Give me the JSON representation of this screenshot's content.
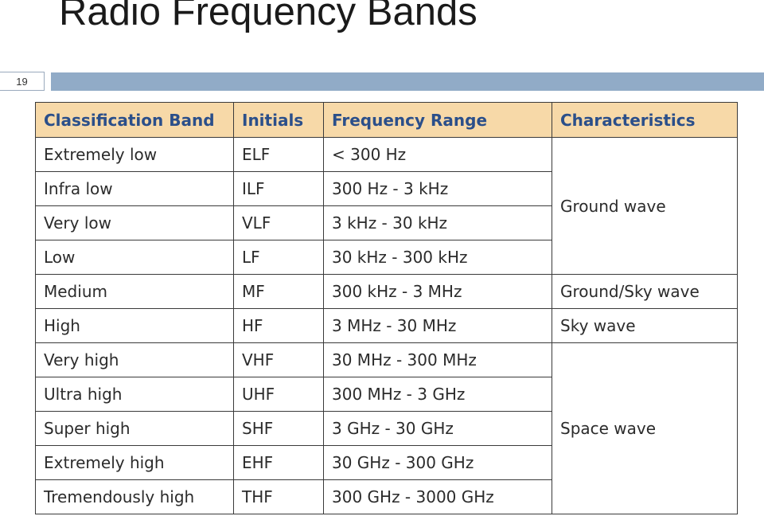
{
  "slide": {
    "title": "Radio Frequency Bands",
    "page_number": "19"
  },
  "table": {
    "headers": [
      "Classification Band",
      "Initials",
      "Frequency Range",
      "Characteristics"
    ],
    "rows": [
      {
        "band": "Extremely low",
        "initials": "ELF",
        "range": "< 300 Hz"
      },
      {
        "band": "Infra low",
        "initials": "ILF",
        "range": "300 Hz - 3 kHz"
      },
      {
        "band": "Very low",
        "initials": "VLF",
        "range": "3 kHz - 30 kHz"
      },
      {
        "band": "Low",
        "initials": "LF",
        "range": "30 kHz - 300 kHz"
      },
      {
        "band": "Medium",
        "initials": "MF",
        "range": "300 kHz - 3 MHz"
      },
      {
        "band": "High",
        "initials": "HF",
        "range": "3 MHz - 30 MHz"
      },
      {
        "band": "Very high",
        "initials": "VHF",
        "range": "30 MHz - 300 MHz"
      },
      {
        "band": "Ultra high",
        "initials": "UHF",
        "range": "300 MHz - 3 GHz"
      },
      {
        "band": "Super high",
        "initials": "SHF",
        "range": "3 GHz - 30 GHz"
      },
      {
        "band": "Extremely high",
        "initials": "EHF",
        "range": "30 GHz - 300 GHz"
      },
      {
        "band": "Tremendously high",
        "initials": "THF",
        "range": "300 GHz - 3000 GHz"
      }
    ],
    "characteristics": {
      "ground_wave": "Ground wave",
      "ground_sky_wave": "Ground/Sky wave",
      "sky_wave": "Sky wave",
      "space_wave": "Space wave"
    }
  },
  "colors": {
    "header_bg": "#f7d9a8",
    "header_text": "#2b4f8a",
    "accent_bar": "#91abc7"
  }
}
